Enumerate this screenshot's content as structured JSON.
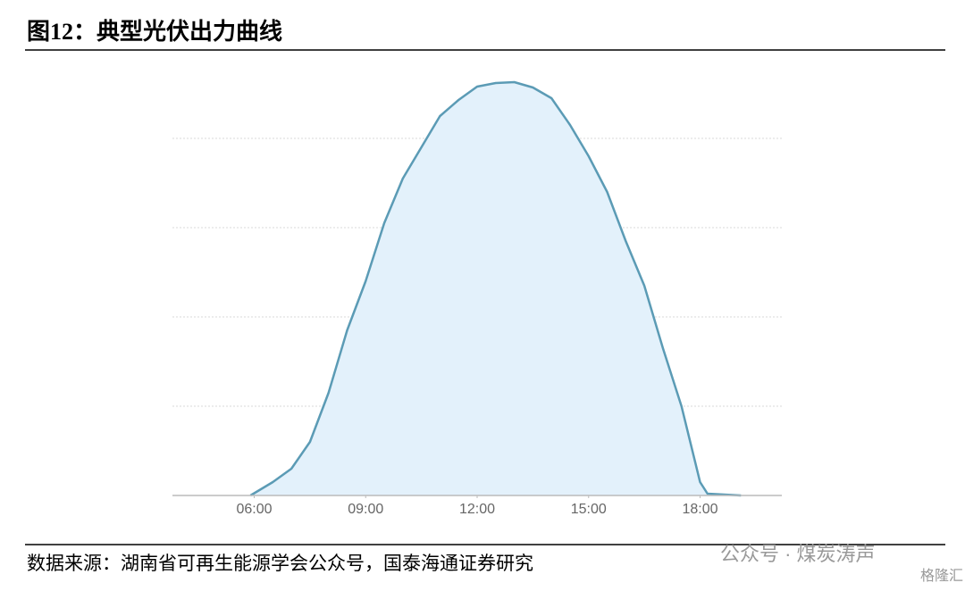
{
  "chart_data": {
    "type": "area",
    "title": "图12：典型光伏出力曲线",
    "source": "数据来源：湖南省可再生能源学会公众号，国泰海通证券研究",
    "x": [
      5.9,
      6.5,
      7.0,
      7.5,
      8.0,
      8.5,
      9.0,
      9.5,
      10.0,
      10.5,
      11.0,
      11.5,
      12.0,
      12.5,
      13.0,
      13.5,
      14.0,
      14.5,
      15.0,
      15.5,
      16.0,
      16.5,
      17.0,
      17.5,
      18.0,
      18.2,
      19.1
    ],
    "values": [
      0,
      0.15,
      0.3,
      0.6,
      1.15,
      1.85,
      2.4,
      3.05,
      3.55,
      3.9,
      4.25,
      4.43,
      4.58,
      4.62,
      4.63,
      4.57,
      4.45,
      4.15,
      3.8,
      3.4,
      2.85,
      2.35,
      1.65,
      1.0,
      0.15,
      0.02,
      0
    ],
    "color": "#5b9bb5",
    "fill": "#e3f1fb",
    "xlim": [
      3.8,
      20.2
    ],
    "xticks": [
      {
        "value": 6,
        "label": "06:00"
      },
      {
        "value": 9,
        "label": "09:00"
      },
      {
        "value": 12,
        "label": "12:00"
      },
      {
        "value": 15,
        "label": "15:00"
      },
      {
        "value": 18,
        "label": "18:00"
      }
    ],
    "ylim": [
      0,
      4.8
    ],
    "yticks": [
      1,
      2,
      3,
      4
    ],
    "grid": true
  },
  "watermark": {
    "account": "公众号 · 煤炭涛声",
    "brand": "格隆汇"
  }
}
